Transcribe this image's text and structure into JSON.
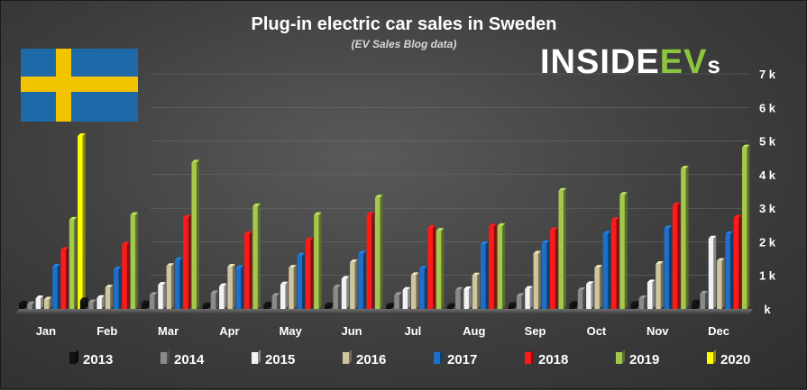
{
  "chart_data": {
    "type": "bar",
    "title": "Plug-in electric car sales in Sweden",
    "subtitle": "(EV Sales Blog data)",
    "logo": {
      "main": "INSIDE",
      "accent": "EV",
      "tail": "s"
    },
    "flag": "sweden-flag",
    "categories": [
      "Jan",
      "Feb",
      "Mar",
      "Apr",
      "May",
      "Jun",
      "Jul",
      "Aug",
      "Sep",
      "Oct",
      "Nov",
      "Dec"
    ],
    "ylim": [
      0,
      7000
    ],
    "yticks": [
      0,
      1000,
      2000,
      3000,
      4000,
      5000,
      6000,
      7000
    ],
    "ytick_labels": [
      "k",
      "1 k",
      "2 k",
      "3 k",
      "4 k",
      "5 k",
      "6 k",
      "7 k"
    ],
    "y_axis_side": "right",
    "grid": true,
    "legend_position": "bottom",
    "series": [
      {
        "name": "2013",
        "color": "#111111",
        "values": [
          160,
          260,
          170,
          110,
          130,
          110,
          100,
          90,
          120,
          150,
          150,
          200
        ]
      },
      {
        "name": "2014",
        "color": "#8a8a8a",
        "values": [
          140,
          200,
          420,
          470,
          390,
          640,
          420,
          570,
          390,
          560,
          320,
          460
        ]
      },
      {
        "name": "2015",
        "color": "#f2f2f2",
        "values": [
          320,
          330,
          720,
          680,
          730,
          900,
          570,
          590,
          600,
          740,
          790,
          2100
        ]
      },
      {
        "name": "2016",
        "color": "#cfc6a0",
        "values": [
          280,
          640,
          1280,
          1260,
          1230,
          1390,
          1010,
          1000,
          1650,
          1230,
          1340,
          1430
        ]
      },
      {
        "name": "2017",
        "color": "#1e6fc8",
        "values": [
          1260,
          1180,
          1460,
          1220,
          1590,
          1650,
          1200,
          1930,
          1960,
          2240,
          2400,
          2230
        ]
      },
      {
        "name": "2018",
        "color": "#ff1a1a",
        "values": [
          1760,
          1920,
          2720,
          2230,
          2050,
          2810,
          2410,
          2460,
          2350,
          2650,
          3090,
          2720
        ]
      },
      {
        "name": "2019",
        "color": "#a4c84c",
        "values": [
          2660,
          2800,
          4360,
          3060,
          2800,
          3320,
          2330,
          2470,
          3520,
          3400,
          4180,
          4810
        ]
      },
      {
        "name": "2020",
        "color": "#ffff00",
        "values": [
          5150,
          null,
          null,
          null,
          null,
          null,
          null,
          null,
          null,
          null,
          null,
          null
        ]
      }
    ]
  }
}
